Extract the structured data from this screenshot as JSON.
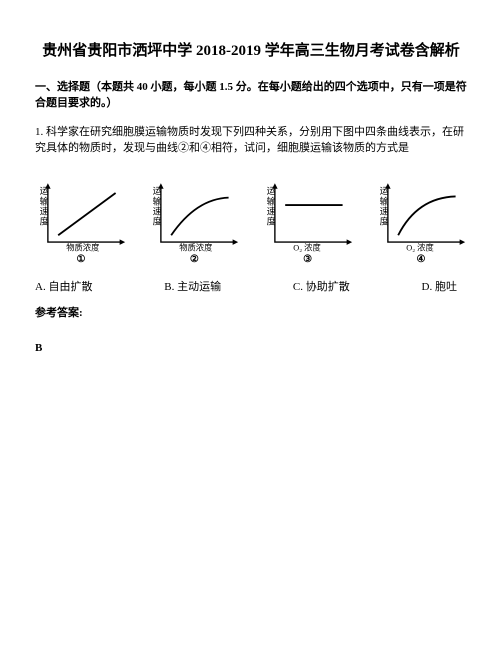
{
  "title": "贵州省贵阳市洒坪中学 2018-2019 学年高三生物月考试卷含解析",
  "section_header": "一、选择题（本题共 40 小题，每小题 1.5 分。在每小题给出的四个选项中，只有一项是符合题目要求的。）",
  "question": "1. 科学家在研究细胞膜运输物质时发现下列四种关系，分别用下图中四条曲线表示，在研究具体的物质时，发现与曲线②和④相符，试问，细胞膜运输该物质的方式是",
  "charts": {
    "chart1": {
      "type": "line",
      "y_label": "运输速度",
      "x_label": "物质浓度",
      "num": "①",
      "line_color": "#000000",
      "points": [
        [
          0.14,
          0.88
        ],
        [
          0.92,
          0.14
        ]
      ],
      "axis_color": "#000000",
      "bg": "#ffffff"
    },
    "chart2": {
      "type": "line",
      "y_label": "运输速度",
      "x_label": "物质浓度",
      "num": "②",
      "line_color": "#000000",
      "points": [
        [
          0.14,
          0.88
        ],
        [
          0.48,
          0.24
        ],
        [
          0.92,
          0.22
        ]
      ],
      "axis_color": "#000000",
      "bg": "#ffffff"
    },
    "chart3": {
      "type": "line",
      "y_label": "运输速度",
      "x_label": "O₂ 浓度",
      "num": "③",
      "line_color": "#000000",
      "points": [
        [
          0.14,
          0.35
        ],
        [
          0.92,
          0.35
        ]
      ],
      "axis_color": "#000000",
      "bg": "#ffffff"
    },
    "chart4": {
      "type": "line",
      "y_label": "运输速度",
      "x_label": "O₂ 浓度",
      "num": "④",
      "line_color": "#000000",
      "points": [
        [
          0.14,
          0.88
        ],
        [
          0.4,
          0.22
        ],
        [
          0.92,
          0.2
        ]
      ],
      "axis_color": "#000000",
      "bg": "#ffffff"
    }
  },
  "options": {
    "a": "A. 自由扩散",
    "b": "B. 主动运输",
    "c": "C. 协助扩散",
    "d": "D. 胞吐"
  },
  "reference_label": "参考答案:",
  "answer": "B"
}
